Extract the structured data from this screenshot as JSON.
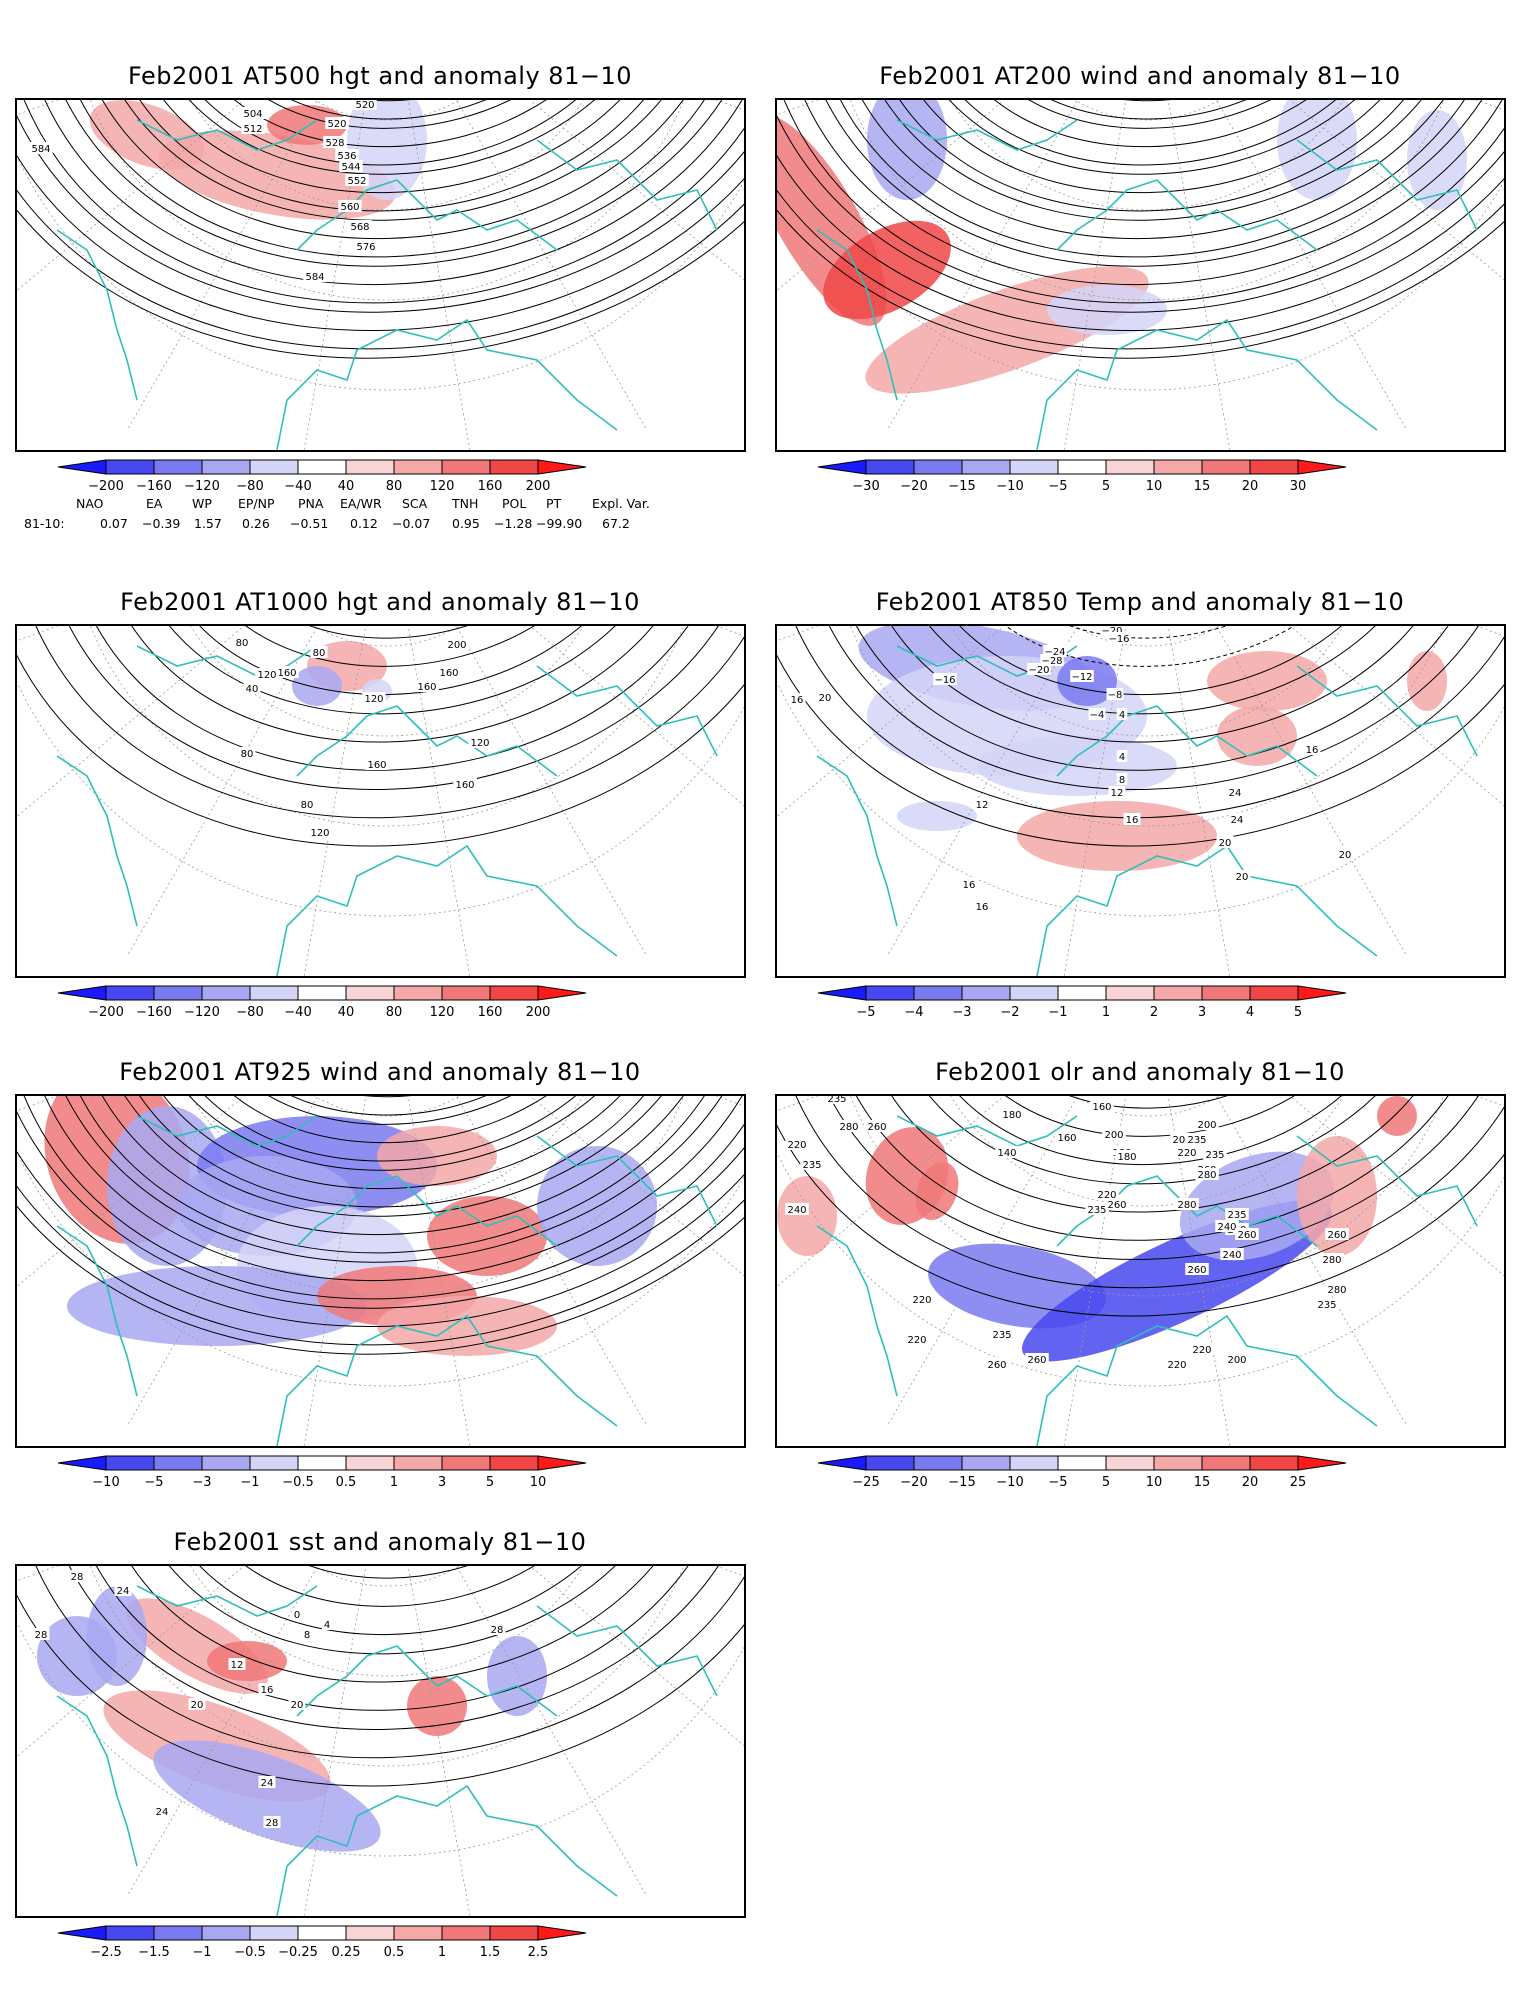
{
  "panels": [
    {
      "id": "p1",
      "title": "Feb2001 AT500 hgt and anomaly 81−10",
      "contour_labels": [
        "584",
        "520",
        "520",
        "512",
        "504",
        "528",
        "536",
        "544",
        "552",
        "560",
        "568",
        "576",
        "584"
      ]
    },
    {
      "id": "p2",
      "title": "Feb2001 AT200 wind and anomaly 81−10",
      "contour_labels": []
    },
    {
      "id": "p3",
      "title": "Feb2001 AT1000 hgt and anomaly 81−10",
      "contour_labels": [
        "80",
        "80",
        "160",
        "120",
        "40",
        "200",
        "160",
        "160",
        "120",
        "80",
        "160",
        "120",
        "160",
        "80",
        "120"
      ]
    },
    {
      "id": "p4",
      "title": "Feb2001 AT850 Temp and anomaly 81−10",
      "contour_labels": [
        "−20",
        "−16",
        "−28",
        "−24",
        "−20",
        "−16",
        "−12",
        "−8",
        "−4",
        "4",
        "16",
        "20",
        "16",
        "12",
        "4",
        "8",
        "12",
        "16",
        "20",
        "24",
        "24",
        "20",
        "16",
        "16",
        "20"
      ]
    },
    {
      "id": "p5",
      "title": "Feb2001 AT925 wind and anomaly 81−10",
      "contour_labels": []
    },
    {
      "id": "p6",
      "title": "Feb2001 olr and anomaly 81−10",
      "contour_labels": [
        "235",
        "180",
        "160",
        "280",
        "260",
        "200",
        "180",
        "140",
        "160",
        "180",
        "200",
        "220",
        "200",
        "235",
        "260",
        "280",
        "235",
        "220",
        "235",
        "240",
        "235",
        "220",
        "260",
        "280",
        "235",
        "260",
        "240",
        "240",
        "260",
        "260",
        "280",
        "260",
        "280",
        "235",
        "220",
        "220",
        "235",
        "260",
        "260",
        "220",
        "200",
        "220"
      ]
    },
    {
      "id": "p7",
      "title": "Feb2001 sst and anomaly 81−10",
      "contour_labels": [
        "28",
        "24",
        "28",
        "20",
        "0",
        "4",
        "8",
        "12",
        "16",
        "20",
        "24",
        "28",
        "24",
        "28"
      ]
    }
  ],
  "colorbars": [
    {
      "id": "cb1",
      "labels": [
        "−200",
        "−160",
        "−120",
        "−80",
        "−40",
        "40",
        "80",
        "120",
        "160",
        "200"
      ]
    },
    {
      "id": "cb2",
      "labels": [
        "−30",
        "−20",
        "−15",
        "−10",
        "−5",
        "5",
        "10",
        "15",
        "20",
        "30"
      ]
    },
    {
      "id": "cb3",
      "labels": [
        "−200",
        "−160",
        "−120",
        "−80",
        "−40",
        "40",
        "80",
        "120",
        "160",
        "200"
      ]
    },
    {
      "id": "cb4",
      "labels": [
        "−5",
        "−4",
        "−3",
        "−2",
        "−1",
        "1",
        "2",
        "3",
        "4",
        "5"
      ]
    },
    {
      "id": "cb5",
      "labels": [
        "−10",
        "−5",
        "−3",
        "−1",
        "−0.5",
        "0.5",
        "1",
        "3",
        "5",
        "10"
      ]
    },
    {
      "id": "cb6",
      "labels": [
        "−25",
        "−20",
        "−15",
        "−10",
        "−5",
        "5",
        "10",
        "15",
        "20",
        "25"
      ]
    },
    {
      "id": "cb7",
      "labels": [
        "−2.5",
        "−1.5",
        "−1",
        "−0.5",
        "−0.25",
        "0.25",
        "0.5",
        "1",
        "1.5",
        "2.5"
      ]
    }
  ],
  "colors": {
    "contour": "#000000",
    "coastline": "#2ebfb8",
    "grid": "#9a9a9a",
    "scale": [
      "#1a1aff",
      "#4848f0",
      "#7a7af0",
      "#a8a8f2",
      "#d4d4f8",
      "#ffffff",
      "#f8d4d4",
      "#f4a8a8",
      "#f07878",
      "#f04646",
      "#ff1a1a"
    ]
  },
  "indices": {
    "headers": [
      "NAO",
      "EA",
      "WP",
      "EP/NP",
      "PNA",
      "EA/WR",
      "SCA",
      "TNH",
      "POL",
      "PT",
      "Expl. Var."
    ],
    "row_label": "81-10:",
    "values": [
      "0.07",
      "−0.39",
      "1.57",
      "0.26",
      "−0.51",
      "0.12",
      "−0.07",
      "0.95",
      "−1.28",
      "−99.90",
      "67.2"
    ]
  }
}
